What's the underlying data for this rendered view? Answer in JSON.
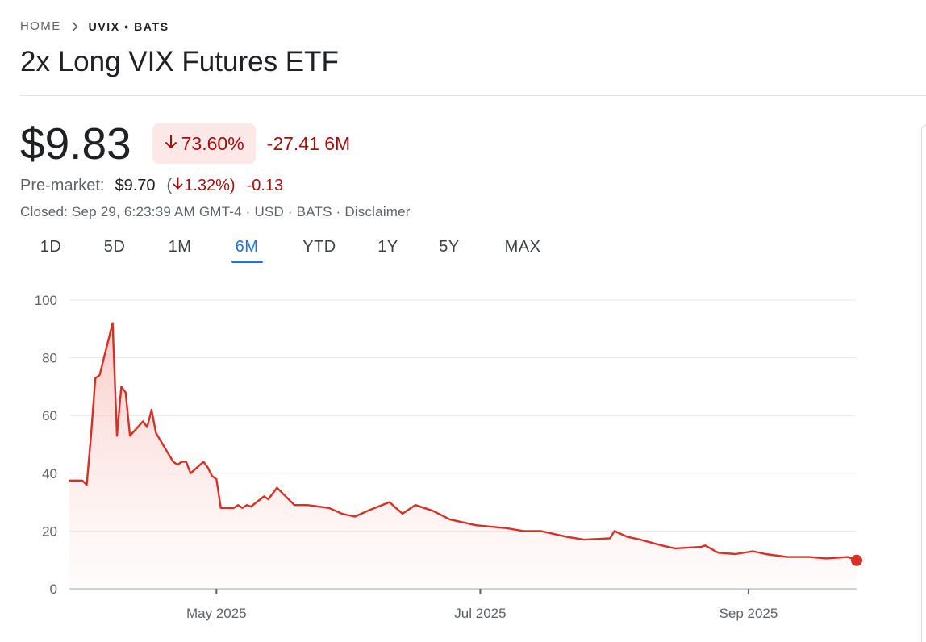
{
  "breadcrumb": {
    "home": "HOME",
    "current": "UVIX • BATS"
  },
  "title": "2x Long VIX Futures ETF",
  "quote": {
    "price": "$9.83",
    "change_pct": "73.60%",
    "change_abs": "-27.41 6M",
    "premarket_label": "Pre-market:",
    "premarket_price": "$9.70",
    "premarket_paren_open": "(",
    "premarket_pct": "1.32%)",
    "premarket_abs": "-0.13",
    "meta": "Closed: Sep 29, 6:23:39 AM GMT-4 · USD · BATS · ",
    "disclaimer": "Disclaimer"
  },
  "range_tabs": [
    "1D",
    "5D",
    "1M",
    "6M",
    "YTD",
    "1Y",
    "5Y",
    "MAX"
  ],
  "active_tab": "6M",
  "colors": {
    "line": "#d93025",
    "negative": "#a50e0e",
    "active_tab": "#1a73e8",
    "pill_bg": "#fce8e6"
  },
  "icons": {
    "breadcrumb_separator": "chevron-right-icon",
    "down_arrow": "arrow-down-icon"
  },
  "chart_data": {
    "type": "area",
    "title": "",
    "xlabel": "",
    "ylabel": "",
    "ylim": [
      0,
      100
    ],
    "yticks": [
      0,
      20,
      40,
      60,
      80,
      100
    ],
    "xticks": [
      {
        "date": "2025-05-01",
        "label": "May 2025"
      },
      {
        "date": "2025-07-01",
        "label": "Jul 2025"
      },
      {
        "date": "2025-09-01",
        "label": "Sep 2025"
      }
    ],
    "xlim": [
      "2025-03-28",
      "2025-09-26"
    ],
    "grid": true,
    "series": [
      {
        "x": [
          "2025-03-28",
          "2025-03-31",
          "2025-04-01",
          "2025-04-02",
          "2025-04-03",
          "2025-04-04",
          "2025-04-07",
          "2025-04-08",
          "2025-04-09",
          "2025-04-10",
          "2025-04-11",
          "2025-04-14",
          "2025-04-15",
          "2025-04-16",
          "2025-04-17",
          "2025-04-21",
          "2025-04-22",
          "2025-04-23",
          "2025-04-24",
          "2025-04-25",
          "2025-04-28",
          "2025-04-29",
          "2025-04-30",
          "2025-05-01",
          "2025-05-02",
          "2025-05-05",
          "2025-05-06",
          "2025-05-07",
          "2025-05-08",
          "2025-05-09",
          "2025-05-12",
          "2025-05-13",
          "2025-05-15",
          "2025-05-19",
          "2025-05-22",
          "2025-05-27",
          "2025-05-30",
          "2025-06-02",
          "2025-06-05",
          "2025-06-10",
          "2025-06-13",
          "2025-06-16",
          "2025-06-20",
          "2025-06-24",
          "2025-06-30",
          "2025-07-07",
          "2025-07-11",
          "2025-07-15",
          "2025-07-21",
          "2025-07-25",
          "2025-07-31",
          "2025-08-01",
          "2025-08-04",
          "2025-08-07",
          "2025-08-12",
          "2025-08-15",
          "2025-08-21",
          "2025-08-22",
          "2025-08-25",
          "2025-08-29",
          "2025-09-02",
          "2025-09-05",
          "2025-09-10",
          "2025-09-15",
          "2025-09-19",
          "2025-09-24",
          "2025-09-26"
        ],
        "y": [
          37.5,
          37.5,
          36,
          53,
          73,
          74,
          92,
          53,
          70,
          68,
          53,
          58,
          56,
          62,
          54,
          44,
          43,
          44,
          44,
          40,
          44,
          42,
          39,
          38,
          28,
          28,
          29,
          28,
          29,
          28.5,
          32,
          31,
          35,
          29,
          29,
          28,
          26,
          25,
          27,
          30,
          26,
          29,
          27,
          24,
          22,
          21,
          20,
          20,
          18,
          17,
          17.5,
          20,
          18,
          17,
          15,
          14,
          14.5,
          15,
          12.5,
          12,
          13,
          12,
          11,
          11,
          10.5,
          11,
          9.83
        ]
      }
    ],
    "last_value": 9.83
  }
}
